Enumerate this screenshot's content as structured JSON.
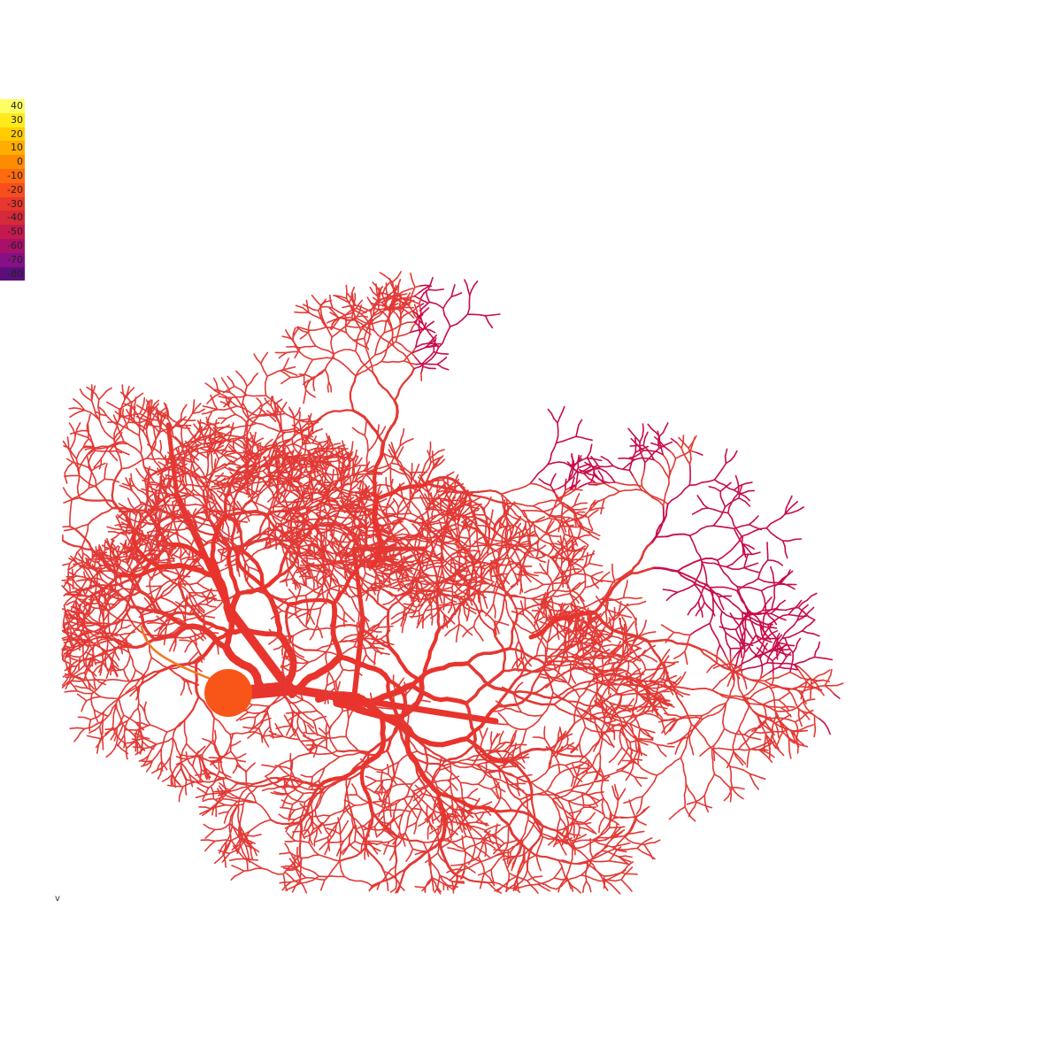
{
  "colorbar": {
    "ticks": [
      "40",
      "30",
      "20",
      "10",
      "0",
      "-10",
      "-20",
      "-30",
      "-40",
      "-50",
      "-60",
      "-70",
      "-80"
    ],
    "colors": [
      "#ffff66",
      "#ffea1a",
      "#ffcc00",
      "#ffad00",
      "#ff8c00",
      "#ff6a10",
      "#f84e1e",
      "#e8372c",
      "#d42a3a",
      "#c41a4e",
      "#a8106a",
      "#861085",
      "#5c0e7c"
    ]
  },
  "variable_label": "v",
  "neuron": {
    "soma_color": "#f85518",
    "axon_color": "#f07a22",
    "trunk_color": "#e8342c",
    "dendrite_color": "#e23a36",
    "distal_color": "#c80d4a"
  }
}
